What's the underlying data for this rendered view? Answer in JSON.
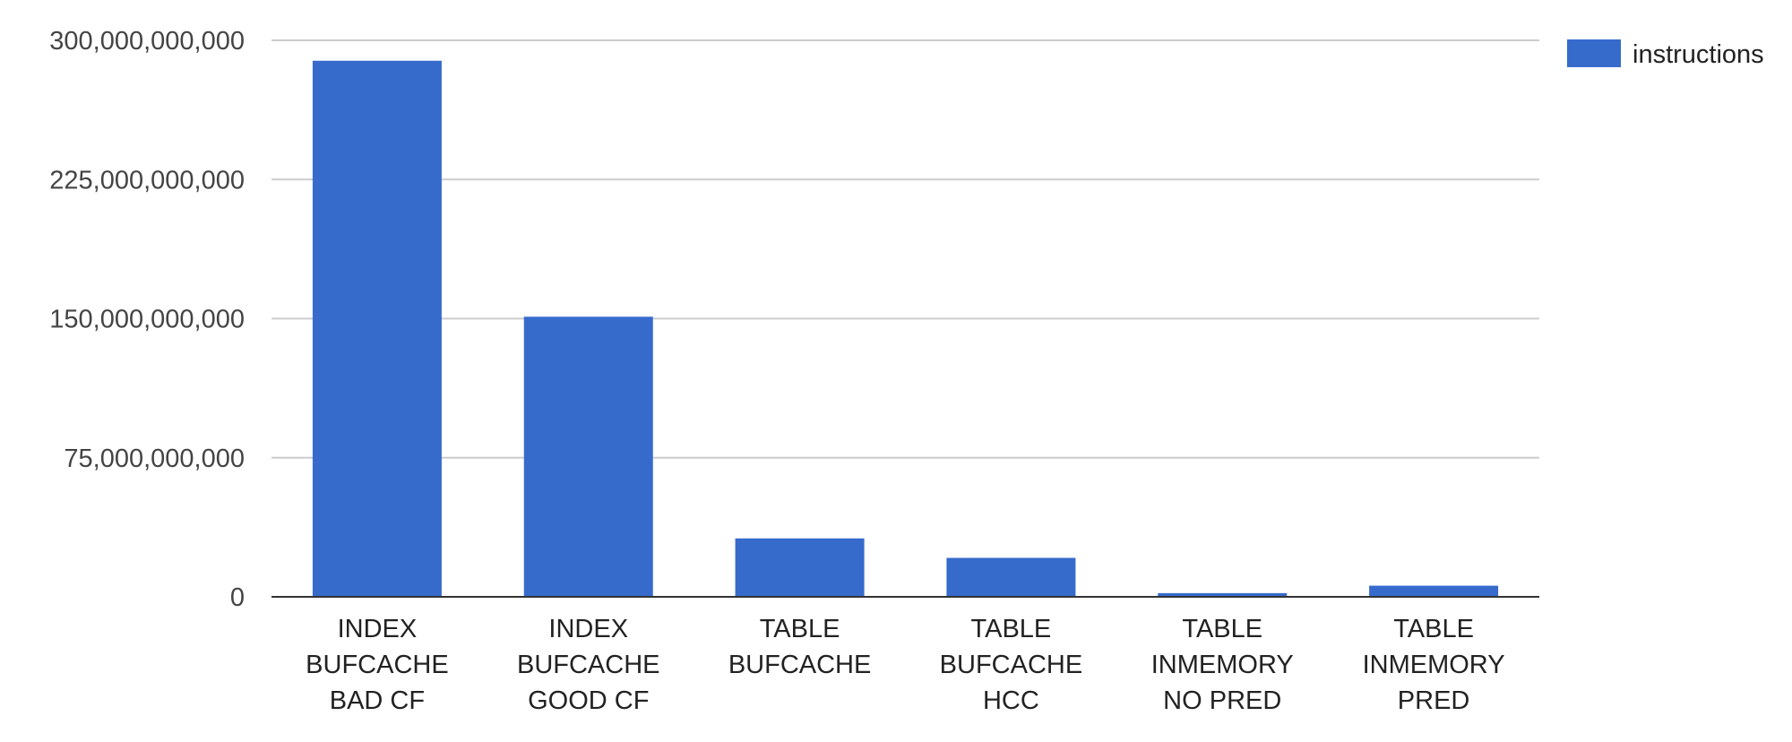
{
  "chart_data": {
    "type": "bar",
    "categories": [
      [
        "INDEX",
        "BUFCACHE",
        "BAD CF"
      ],
      [
        "INDEX",
        "BUFCACHE",
        "GOOD CF"
      ],
      [
        "TABLE",
        "BUFCACHE"
      ],
      [
        "TABLE",
        "BUFCACHE",
        "HCC"
      ],
      [
        "TABLE",
        "INMEMORY",
        "NO PRED"
      ],
      [
        "TABLE",
        "INMEMORY",
        "PRED"
      ]
    ],
    "series": [
      {
        "name": "instructions",
        "color": "#366bcc",
        "values": [
          289000000000,
          151000000000,
          31500000000,
          21000000000,
          2000000000,
          6000000000
        ]
      }
    ],
    "yticks": [
      0,
      75000000000,
      150000000000,
      225000000000,
      300000000000
    ],
    "ytick_labels": [
      "0",
      "75,000,000,000",
      "150,000,000,000",
      "225,000,000,000",
      "300,000,000,000"
    ],
    "ylim": [
      0,
      300000000000
    ],
    "grid": true,
    "legend_position": "right-top",
    "title": "",
    "xlabel": "",
    "ylabel": ""
  }
}
